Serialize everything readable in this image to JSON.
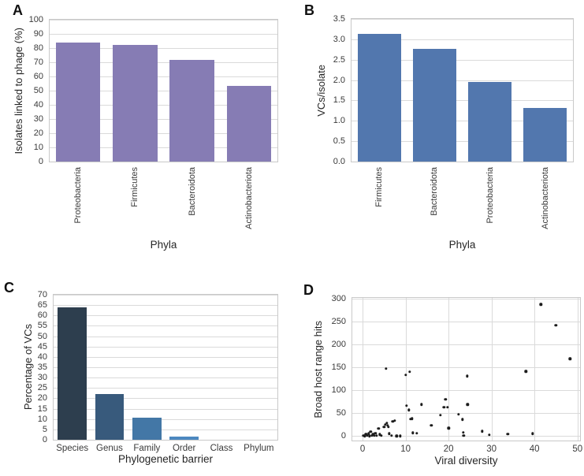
{
  "figure": {
    "panels": [
      {
        "label": "A"
      },
      {
        "label": "B"
      },
      {
        "label": "C"
      },
      {
        "label": "D"
      }
    ]
  },
  "chart_data": [
    {
      "panel": "A",
      "type": "bar",
      "categories": [
        "Proteobacteria",
        "Firmicutes",
        "Bacteroidota",
        "Actinobacteriota"
      ],
      "values": [
        84,
        82,
        71.5,
        53.5
      ],
      "title": "",
      "xlabel": "Phyla",
      "ylabel": "Isolates linked to phage (%)",
      "ylim": [
        0,
        100
      ],
      "yticks": [
        "0",
        "10",
        "20",
        "30",
        "40",
        "50",
        "60",
        "70",
        "80",
        "90",
        "100"
      ],
      "ytick_values": [
        0,
        10,
        20,
        30,
        40,
        50,
        60,
        70,
        80,
        90,
        100
      ],
      "bar_color": "#867cb4",
      "xtick_rotation": 90,
      "grid": "horizontal",
      "legend": "none"
    },
    {
      "panel": "B",
      "type": "bar",
      "categories": [
        "Firmicutes",
        "Bacteroidota",
        "Proteobacteria",
        "Actinobacteriota"
      ],
      "values": [
        3.13,
        2.76,
        1.96,
        1.31
      ],
      "title": "",
      "xlabel": "Phyla",
      "ylabel": "VCs/isolate",
      "ylim": [
        0,
        3.5
      ],
      "yticks": [
        "0.0",
        "0.5",
        "1.0",
        "1.5",
        "2.0",
        "2.5",
        "3.0",
        "3.5"
      ],
      "ytick_values": [
        0,
        0.5,
        1,
        1.5,
        2,
        2.5,
        3,
        3.5
      ],
      "bar_color": "#5277ae",
      "xtick_rotation": 90,
      "grid": "horizontal",
      "legend": "none"
    },
    {
      "panel": "C",
      "type": "bar",
      "categories": [
        "Species",
        "Genus",
        "Family",
        "Order",
        "Class",
        "Phylum"
      ],
      "values": [
        64,
        22,
        10.5,
        1.5,
        0,
        0
      ],
      "title": "",
      "xlabel": "Phylogenetic barrier",
      "ylabel": "Percentage of VCs",
      "ylim": [
        0,
        70
      ],
      "yticks": [
        "0",
        "5",
        "10",
        "15",
        "20",
        "25",
        "30",
        "35",
        "40",
        "45",
        "50",
        "55",
        "60",
        "65",
        "70"
      ],
      "ytick_values": [
        0,
        5,
        10,
        15,
        20,
        25,
        30,
        35,
        40,
        45,
        50,
        55,
        60,
        65,
        70
      ],
      "bar_colors": [
        "#2d3e4e",
        "#385a7c",
        "#4377a6",
        "#4c88c0",
        "#579bd2",
        "#67a9dc"
      ],
      "xtick_rotation": 0,
      "grid": "horizontal",
      "legend": "none"
    },
    {
      "panel": "D",
      "type": "scatter",
      "points": [
        [
          0.2,
          1
        ],
        [
          0.5,
          0
        ],
        [
          0.8,
          4
        ],
        [
          1.1,
          1
        ],
        [
          1.4,
          5
        ],
        [
          1.6,
          0
        ],
        [
          1.9,
          9
        ],
        [
          2.1,
          1
        ],
        [
          2.4,
          3
        ],
        [
          2.7,
          1
        ],
        [
          3.0,
          6
        ],
        [
          3.3,
          1
        ],
        [
          3.7,
          16
        ],
        [
          4.0,
          3
        ],
        [
          4.4,
          1
        ],
        [
          5.0,
          20
        ],
        [
          5.3,
          25
        ],
        [
          5.5,
          147
        ],
        [
          5.6,
          28
        ],
        [
          5.8,
          23
        ],
        [
          6.0,
          20
        ],
        [
          6.2,
          5
        ],
        [
          6.7,
          1
        ],
        [
          7.0,
          32
        ],
        [
          7.5,
          33
        ],
        [
          7.9,
          0
        ],
        [
          8.8,
          0
        ],
        [
          10.0,
          133
        ],
        [
          10.2,
          66
        ],
        [
          10.8,
          57
        ],
        [
          10.9,
          140
        ],
        [
          11.1,
          37
        ],
        [
          11.5,
          38
        ],
        [
          11.7,
          7
        ],
        [
          12.6,
          6
        ],
        [
          13.7,
          69
        ],
        [
          16.0,
          23
        ],
        [
          18.1,
          45
        ],
        [
          18.9,
          63
        ],
        [
          19.3,
          80
        ],
        [
          19.7,
          63
        ],
        [
          20.0,
          17
        ],
        [
          22.3,
          47
        ],
        [
          23.2,
          36
        ],
        [
          23.4,
          8
        ],
        [
          23.5,
          1
        ],
        [
          24.3,
          131
        ],
        [
          24.4,
          69
        ],
        [
          27.8,
          10
        ],
        [
          29.5,
          2
        ],
        [
          33.8,
          4
        ],
        [
          38.0,
          141
        ],
        [
          39.6,
          5
        ],
        [
          41.5,
          288
        ],
        [
          45.0,
          242
        ],
        [
          48.3,
          169
        ]
      ],
      "title": "",
      "xlabel": "Viral diversity",
      "ylabel": "Broad host range hits",
      "xlim": [
        -2.4,
        50.6
      ],
      "ylim": [
        -10,
        302
      ],
      "xticks": [
        "0",
        "10",
        "20",
        "30",
        "40",
        "50"
      ],
      "xtick_values": [
        0,
        10,
        20,
        30,
        40,
        50
      ],
      "yticks": [
        "0",
        "50",
        "100",
        "150",
        "200",
        "250",
        "300"
      ],
      "ytick_values": [
        0,
        50,
        100,
        150,
        200,
        250,
        300
      ],
      "point_color": "#1c1c1c",
      "grid": "both",
      "legend": "none"
    }
  ],
  "colors": {
    "gridline": "#dadada",
    "spine": "#c9c9c9",
    "text": "#262626",
    "background": "#ffffff"
  }
}
